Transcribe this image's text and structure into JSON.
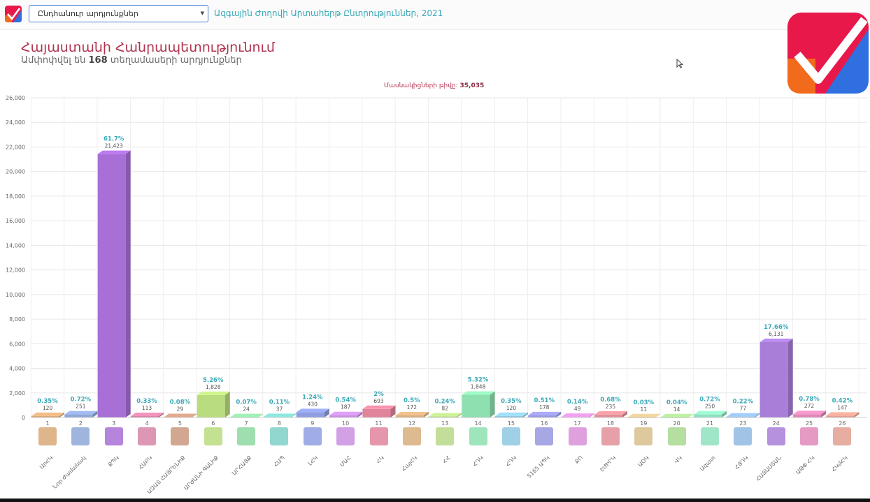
{
  "topbar": {
    "select_value": "Ընդհանուր արդյունքներ",
    "breadcrumb": "Ազգային Ժողովի Արտահերթ Ընտրություններ, 2021"
  },
  "header": {
    "title": "Հայաստանի Հանրապետությունում",
    "subtitle_prefix": "Ամփոփվել են",
    "subtitle_count": "168",
    "subtitle_suffix": "տեղամասերի արդյունքներ",
    "participants_label": "Մասնակիցների թիվը:",
    "participants_value": "35,035"
  },
  "colors": {
    "accent": "#b0344e",
    "teal": "#3aa9b8",
    "logo_red": "#e8194a",
    "logo_blue": "#2f6fe0",
    "logo_orange": "#f26b1d"
  },
  "chart_data": {
    "type": "bar",
    "ylim": [
      0,
      26000
    ],
    "yticks": [
      "0",
      "2,000",
      "4,000",
      "6,000",
      "8,000",
      "10,000",
      "12,000",
      "14,000",
      "16,000",
      "18,000",
      "20,000",
      "22,000",
      "24,000",
      "26,000"
    ],
    "grid": true,
    "bars": [
      {
        "num": "1",
        "name": "ԱրՀԿ",
        "value": 120,
        "value_label": "120",
        "pct": "0.35%",
        "color": "#d9a878",
        "icon": "logo-orange-square"
      },
      {
        "num": "2",
        "name": "Նոր Ժամանակ",
        "value": 251,
        "value_label": "251",
        "pct": "0.72%",
        "color": "#8fa8d8",
        "icon": "logo-spiral"
      },
      {
        "num": "3",
        "name": "ՔՊԿ",
        "value": 21423,
        "value_label": "21,423",
        "pct": "61.7%",
        "color": "#a86fd6",
        "icon": "logo-civil-contract"
      },
      {
        "num": "4",
        "name": "ՀԱԲԿ",
        "value": 113,
        "value_label": "113",
        "pct": "0.33%",
        "color": "#d884a8",
        "icon": "logo-eagle"
      },
      {
        "num": "5",
        "name": "ԱԶԱՏ ՀԱՅՐԵՆԻՔ",
        "value": 29,
        "value_label": "29",
        "pct": "0.08%",
        "color": "#c9987e",
        "icon": "logo-stripes"
      },
      {
        "num": "6",
        "name": "ԱՐԺԱՆԻ ԳԱԼԻՔ",
        "value": 1828,
        "value_label": "1,828",
        "pct": "5.26%",
        "color": "#b9dc7e",
        "icon": "logo-star"
      },
      {
        "num": "7",
        "name": "ԱՐՀԱՅՔ",
        "value": 24,
        "value_label": "24",
        "pct": "0.07%",
        "color": "#8ed8a0",
        "icon": "logo-text-arhayq"
      },
      {
        "num": "8",
        "name": "ՀԱՊ",
        "value": 37,
        "value_label": "37",
        "pct": "0.11%",
        "color": "#7ed0c8",
        "icon": "logo-emblem-purple"
      },
      {
        "num": "9",
        "name": "ԼՀԿ",
        "value": 430,
        "value_label": "430",
        "pct": "1.24%",
        "color": "#8f9ee0",
        "icon": "logo-bright-armenia"
      },
      {
        "num": "10",
        "name": "ՄԱՀ",
        "value": 187,
        "value_label": "187",
        "pct": "0.54%",
        "color": "#c98fe0",
        "icon": "logo-house"
      },
      {
        "num": "11",
        "name": "ՀԿ",
        "value": 693,
        "value_label": "693",
        "pct": "2%",
        "color": "#e0849c",
        "icon": "logo-round-ornament"
      },
      {
        "num": "12",
        "name": "ՀայՀԿ",
        "value": 172,
        "value_label": "172",
        "pct": "0.5%",
        "color": "#d8ae7e",
        "icon": "logo-orange-cross"
      },
      {
        "num": "13",
        "name": "ՀՀ",
        "value": 82,
        "value_label": "82",
        "pct": "0.24%",
        "color": "#b8d888",
        "icon": "logo-banner"
      },
      {
        "num": "14",
        "name": "ՀԴԿ",
        "value": 1848,
        "value_label": "1,848",
        "pct": "5.32%",
        "color": "#8ee0b0",
        "icon": "logo-swoosh"
      },
      {
        "num": "15",
        "name": "ՀԴԿ",
        "value": 120,
        "value_label": "120",
        "pct": "0.35%",
        "color": "#8ec8e0",
        "icon": "logo-red-figure"
      },
      {
        "num": "16",
        "name": "5165 ԱՊԿ",
        "value": 178,
        "value_label": "178",
        "pct": "0.51%",
        "color": "#9898e0",
        "icon": "logo-5165"
      },
      {
        "num": "17",
        "name": "ՔՈ",
        "value": 49,
        "value_label": "49",
        "pct": "0.14%",
        "color": "#d890d8",
        "icon": "logo-green-shield"
      },
      {
        "num": "18",
        "name": "ԷԺԻՐԿ",
        "value": 235,
        "value_label": "235",
        "pct": "0.68%",
        "color": "#e09098",
        "icon": "logo-thin-text"
      },
      {
        "num": "19",
        "name": "ԱՕԿ",
        "value": 11,
        "value_label": "11",
        "pct": "0.03%",
        "color": "#d8c08e",
        "icon": "logo-dark-emblem"
      },
      {
        "num": "20",
        "name": "ՎԿ",
        "value": 14,
        "value_label": "14",
        "pct": "0.04%",
        "color": "#a8d890",
        "icon": "logo-mountain"
      },
      {
        "num": "21",
        "name": "Ազատ",
        "value": 250,
        "value_label": "250",
        "pct": "0.72%",
        "color": "#90e0c0",
        "icon": "logo-phoenix"
      },
      {
        "num": "23",
        "name": "ՀՅԴԿ",
        "value": 77,
        "value_label": "77",
        "pct": "0.22%",
        "color": "#90b8e0",
        "icon": "logo-armenian-flag"
      },
      {
        "num": "24",
        "name": "ՀԱՅԱՍՏԱՆ",
        "value": 6131,
        "value_label": "6,131",
        "pct": "17.66%",
        "color": "#a87ed8",
        "icon": "logo-hayastan"
      },
      {
        "num": "25",
        "name": "ԱԹՓ ՀԿ",
        "value": 272,
        "value_label": "272",
        "pct": "0.78%",
        "color": "#e088b8",
        "icon": "logo-red-runner"
      },
      {
        "num": "26",
        "name": "ՀԿմՀԿ",
        "value": 147,
        "value_label": "147",
        "pct": "0.42%",
        "color": "#e0a090",
        "icon": "logo-gold-bird"
      }
    ]
  }
}
